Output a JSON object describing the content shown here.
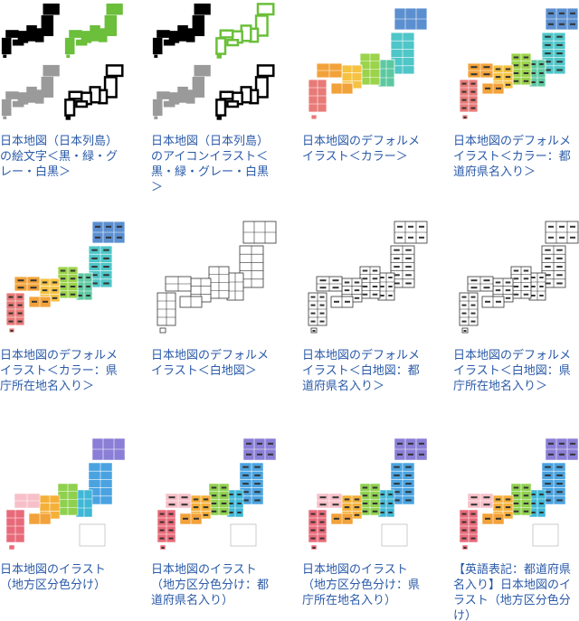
{
  "items": [
    {
      "caption": "日本地図（日本列島）の絵文字＜黒・緑・グレー・白黒＞"
    },
    {
      "caption": "日本地図（日本列島）のアイコンイラスト＜黒・緑・グレー・白黒＞"
    },
    {
      "caption": "日本地図のデフォルメイラスト＜カラー＞"
    },
    {
      "caption": "日本地図のデフォルメイラスト＜カラー：都道府県名入り＞"
    },
    {
      "caption": "日本地図のデフォルメイラスト＜カラー：県庁所在地名入り＞"
    },
    {
      "caption": "日本地図のデフォルメイラスト＜白地図＞"
    },
    {
      "caption": "日本地図のデフォルメイラスト＜白地図：都道府県名入り＞"
    },
    {
      "caption": "日本地図のデフォルメイラスト＜白地図：県庁所在地名入り＞"
    },
    {
      "caption": "日本地図のイラスト（地方区分色分け）"
    },
    {
      "caption": "日本地図のイラスト（地方区分色分け：都道府県名入り）"
    },
    {
      "caption": "日本地図のイラスト（地方区分色分け：県庁所在地名入り）"
    },
    {
      "caption": "【英語表記：都道府県名入り】日本地図のイラスト（地方区分色分け）"
    }
  ]
}
